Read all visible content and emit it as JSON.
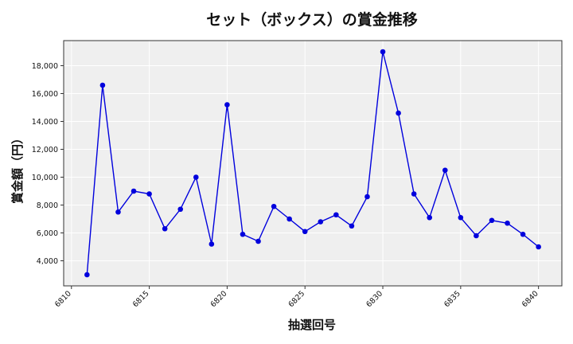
{
  "chart_data": {
    "type": "line",
    "title": "セット（ボックス）の賞金推移",
    "xlabel": "抽選回号",
    "ylabel": "賞金額（円）",
    "x": [
      6811,
      6812,
      6813,
      6814,
      6815,
      6816,
      6817,
      6818,
      6819,
      6820,
      6821,
      6822,
      6823,
      6824,
      6825,
      6826,
      6827,
      6828,
      6829,
      6830,
      6831,
      6832,
      6833,
      6834,
      6835,
      6836,
      6837,
      6838,
      6839,
      6840
    ],
    "series": [
      {
        "values": [
          3000,
          16600,
          7500,
          9000,
          8800,
          6300,
          7700,
          10000,
          5200,
          15200,
          5900,
          5400,
          7900,
          7000,
          6100,
          6800,
          7300,
          6500,
          8600,
          19000,
          14600,
          8800,
          7100,
          10500,
          7100,
          5800,
          6900,
          6700,
          5900,
          5000
        ],
        "color": "#0000dd"
      }
    ],
    "x_ticks": [
      6810,
      6815,
      6820,
      6825,
      6830,
      6835,
      6840
    ],
    "x_tick_labels": [
      "6810",
      "6815",
      "6820",
      "6825",
      "6830",
      "6835",
      "6840"
    ],
    "y_ticks": [
      4000,
      6000,
      8000,
      10000,
      12000,
      14000,
      16000,
      18000
    ],
    "y_tick_labels": [
      "4,000",
      "6,000",
      "8,000",
      "10,000",
      "12,000",
      "14,000",
      "16,000",
      "18,000"
    ],
    "xlim": [
      6809.5,
      6841.5
    ],
    "ylim": [
      2200,
      19800
    ],
    "grid": true,
    "background_color": "#efefef"
  }
}
